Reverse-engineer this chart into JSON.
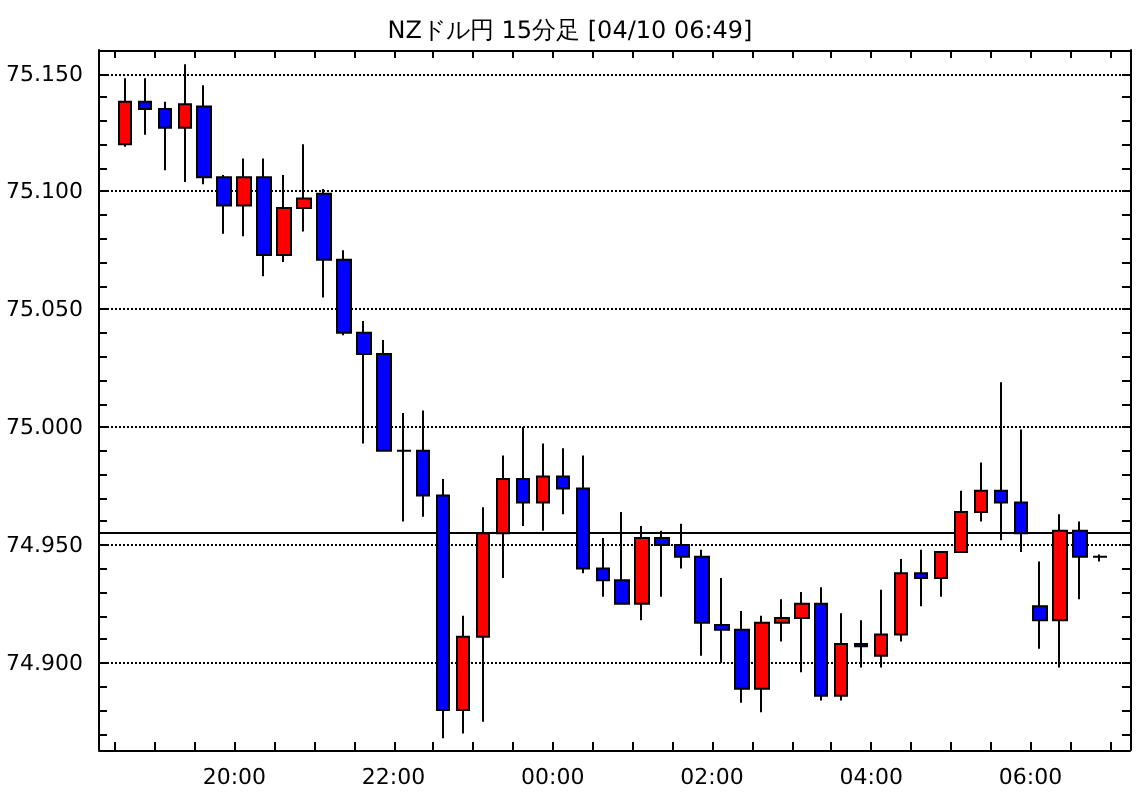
{
  "chart_data": {
    "type": "candlestick",
    "title": "NZドル円 15分足 [04/10 06:49]",
    "x": [
      "--04-09T18:37:30",
      "--04-09T18:52:30",
      "--04-09T19:07:30",
      "--04-09T19:22:30",
      "--04-09T19:37:30",
      "--04-09T19:52:30",
      "--04-09T20:07:30",
      "--04-09T20:22:30",
      "--04-09T20:37:30",
      "--04-09T20:52:30",
      "--04-09T21:07:30",
      "--04-09T21:22:30",
      "--04-09T21:37:30",
      "--04-09T21:52:30",
      "--04-09T22:07:30",
      "--04-09T22:22:30",
      "--04-09T22:37:30",
      "--04-09T22:52:30",
      "--04-09T23:07:30",
      "--04-09T23:22:30",
      "--04-09T23:37:30",
      "--04-09T23:52:30",
      "--04-10T00:07:30",
      "--04-10T00:22:30",
      "--04-10T00:37:30",
      "--04-10T00:52:30",
      "--04-10T01:07:30",
      "--04-10T01:22:30",
      "--04-10T01:37:30",
      "--04-10T01:52:30",
      "--04-10T02:07:30",
      "--04-10T02:22:30",
      "--04-10T02:37:30",
      "--04-10T02:52:30",
      "--04-10T03:07:30",
      "--04-10T03:22:30",
      "--04-10T03:37:30",
      "--04-10T03:52:30",
      "--04-10T04:07:30",
      "--04-10T04:22:30",
      "--04-10T04:37:30",
      "--04-10T04:52:30",
      "--04-10T05:07:30",
      "--04-10T05:22:30",
      "--04-10T05:37:30",
      "--04-10T05:52:30",
      "--04-10T06:07:30",
      "--04-10T06:22:30",
      "--04-10T06:37:30",
      "--04-10T06:52:30"
    ],
    "ohlc": [
      [
        75.12,
        75.148,
        75.119,
        75.138
      ],
      [
        75.138,
        75.148,
        75.124,
        75.135
      ],
      [
        75.135,
        75.138,
        75.109,
        75.127
      ],
      [
        75.127,
        75.154,
        75.104,
        75.137
      ],
      [
        75.136,
        75.145,
        75.103,
        75.106
      ],
      [
        75.106,
        75.107,
        75.082,
        75.094
      ],
      [
        75.094,
        75.114,
        75.081,
        75.106
      ],
      [
        75.106,
        75.114,
        75.064,
        75.073
      ],
      [
        75.073,
        75.107,
        75.07,
        75.093
      ],
      [
        75.093,
        75.12,
        75.083,
        75.097
      ],
      [
        75.099,
        75.101,
        75.055,
        75.071
      ],
      [
        75.071,
        75.075,
        75.039,
        75.04
      ],
      [
        75.04,
        75.045,
        74.993,
        75.031
      ],
      [
        75.031,
        75.037,
        74.99,
        74.99
      ],
      [
        74.99,
        75.006,
        74.96,
        74.99
      ],
      [
        74.99,
        75.007,
        74.962,
        74.971
      ],
      [
        74.971,
        74.978,
        74.868,
        74.88
      ],
      [
        74.88,
        74.92,
        74.87,
        74.911
      ],
      [
        74.911,
        74.966,
        74.875,
        74.955
      ],
      [
        74.955,
        74.988,
        74.936,
        74.978
      ],
      [
        74.978,
        75.0,
        74.958,
        74.968
      ],
      [
        74.968,
        74.993,
        74.956,
        74.979
      ],
      [
        74.979,
        74.991,
        74.963,
        74.974
      ],
      [
        74.974,
        74.988,
        74.938,
        74.94
      ],
      [
        74.94,
        74.953,
        74.928,
        74.935
      ],
      [
        74.935,
        74.964,
        74.925,
        74.925
      ],
      [
        74.925,
        74.958,
        74.918,
        74.953
      ],
      [
        74.953,
        74.956,
        74.928,
        74.95
      ],
      [
        74.95,
        74.959,
        74.94,
        74.945
      ],
      [
        74.945,
        74.948,
        74.903,
        74.917
      ],
      [
        74.916,
        74.936,
        74.9,
        74.914
      ],
      [
        74.914,
        74.922,
        74.883,
        74.889
      ],
      [
        74.889,
        74.92,
        74.879,
        74.917
      ],
      [
        74.917,
        74.927,
        74.909,
        74.919
      ],
      [
        74.919,
        74.93,
        74.896,
        74.925
      ],
      [
        74.925,
        74.932,
        74.884,
        74.886
      ],
      [
        74.886,
        74.921,
        74.884,
        74.908
      ],
      [
        74.908,
        74.918,
        74.898,
        74.907
      ],
      [
        74.903,
        74.931,
        74.898,
        74.912
      ],
      [
        74.912,
        74.944,
        74.909,
        74.938
      ],
      [
        74.938,
        74.948,
        74.924,
        74.936
      ],
      [
        74.936,
        74.947,
        74.928,
        74.947
      ],
      [
        74.947,
        74.973,
        74.947,
        74.964
      ],
      [
        74.964,
        74.985,
        74.96,
        74.973
      ],
      [
        74.973,
        75.019,
        74.952,
        74.968
      ],
      [
        74.968,
        74.999,
        74.947,
        74.955
      ],
      [
        74.924,
        74.943,
        74.906,
        74.918
      ],
      [
        74.918,
        74.963,
        74.898,
        74.956
      ],
      [
        74.956,
        74.96,
        74.927,
        74.945
      ],
      [
        74.945,
        74.946,
        74.943,
        74.945
      ]
    ],
    "colors": [
      "#ff0000",
      "#0000ff",
      "#0000ff",
      "#ff0000",
      "#0000ff",
      "#0000ff",
      "#ff0000",
      "#0000ff",
      "#ff0000",
      "#ff0000",
      "#0000ff",
      "#0000ff",
      "#0000ff",
      "#0000ff",
      "#000000",
      "#0000ff",
      "#0000ff",
      "#ff0000",
      "#ff0000",
      "#ff0000",
      "#0000ff",
      "#ff0000",
      "#0000ff",
      "#0000ff",
      "#0000ff",
      "#0000ff",
      "#ff0000",
      "#0000ff",
      "#0000ff",
      "#0000ff",
      "#0000ff",
      "#0000ff",
      "#ff0000",
      "#ff0000",
      "#ff0000",
      "#0000ff",
      "#ff0000",
      "#0000ff",
      "#ff0000",
      "#ff0000",
      "#0000ff",
      "#ff0000",
      "#ff0000",
      "#ff0000",
      "#0000ff",
      "#0000ff",
      "#0000ff",
      "#ff0000",
      "#0000ff",
      "#000000"
    ],
    "xlim": [
      "--04-09T18:18",
      "--04-10T07:15"
    ],
    "xticks": [
      {
        "value": "--04-09T18:30",
        "label": null
      },
      {
        "value": "--04-09T19:00",
        "label": null
      },
      {
        "value": "--04-09T19:30",
        "label": null
      },
      {
        "value": "--04-09T20:00",
        "label": "20:00"
      },
      {
        "value": "--04-09T20:30",
        "label": null
      },
      {
        "value": "--04-09T21:00",
        "label": null
      },
      {
        "value": "--04-09T21:30",
        "label": null
      },
      {
        "value": "--04-09T22:00",
        "label": "22:00"
      },
      {
        "value": "--04-09T22:30",
        "label": null
      },
      {
        "value": "--04-09T23:00",
        "label": null
      },
      {
        "value": "--04-09T23:30",
        "label": null
      },
      {
        "value": "--04-10T00:00",
        "label": "00:00"
      },
      {
        "value": "--04-10T00:30",
        "label": null
      },
      {
        "value": "--04-10T01:00",
        "label": null
      },
      {
        "value": "--04-10T01:30",
        "label": null
      },
      {
        "value": "--04-10T02:00",
        "label": "02:00"
      },
      {
        "value": "--04-10T02:30",
        "label": null
      },
      {
        "value": "--04-10T03:00",
        "label": null
      },
      {
        "value": "--04-10T03:30",
        "label": null
      },
      {
        "value": "--04-10T04:00",
        "label": "04:00"
      },
      {
        "value": "--04-10T04:30",
        "label": null
      },
      {
        "value": "--04-10T05:00",
        "label": null
      },
      {
        "value": "--04-10T05:30",
        "label": null
      },
      {
        "value": "--04-10T06:00",
        "label": "06:00"
      },
      {
        "value": "--04-10T06:30",
        "label": null
      },
      {
        "value": "--04-10T07:00",
        "label": null
      }
    ],
    "ylim": [
      74.863,
      75.16
    ],
    "yticks": [
      {
        "value": 74.87,
        "label": null
      },
      {
        "value": 74.88,
        "label": null
      },
      {
        "value": 74.89,
        "label": null
      },
      {
        "value": 74.9,
        "label": "74.900"
      },
      {
        "value": 74.91,
        "label": null
      },
      {
        "value": 74.92,
        "label": null
      },
      {
        "value": 74.93,
        "label": null
      },
      {
        "value": 74.94,
        "label": null
      },
      {
        "value": 74.95,
        "label": "74.950"
      },
      {
        "value": 74.96,
        "label": null
      },
      {
        "value": 74.97,
        "label": null
      },
      {
        "value": 74.98,
        "label": null
      },
      {
        "value": 74.99,
        "label": null
      },
      {
        "value": 75,
        "label": "75.000"
      },
      {
        "value": 75.01,
        "label": null
      },
      {
        "value": 75.02,
        "label": null
      },
      {
        "value": 75.03,
        "label": null
      },
      {
        "value": 75.04,
        "label": null
      },
      {
        "value": 75.05,
        "label": "75.050"
      },
      {
        "value": 75.06,
        "label": null
      },
      {
        "value": 75.07,
        "label": null
      },
      {
        "value": 75.08,
        "label": null
      },
      {
        "value": 75.09,
        "label": null
      },
      {
        "value": 75.1,
        "label": "75.100"
      },
      {
        "value": 75.11,
        "label": null
      },
      {
        "value": 75.12,
        "label": null
      },
      {
        "value": 75.13,
        "label": null
      },
      {
        "value": 75.14,
        "label": null
      },
      {
        "value": 75.15,
        "label": "75.150"
      }
    ],
    "grid": "y",
    "ref_lines": [
      {
        "axis": "y",
        "value": 74.955,
        "color": "#000000",
        "line_style": "solid"
      }
    ]
  }
}
